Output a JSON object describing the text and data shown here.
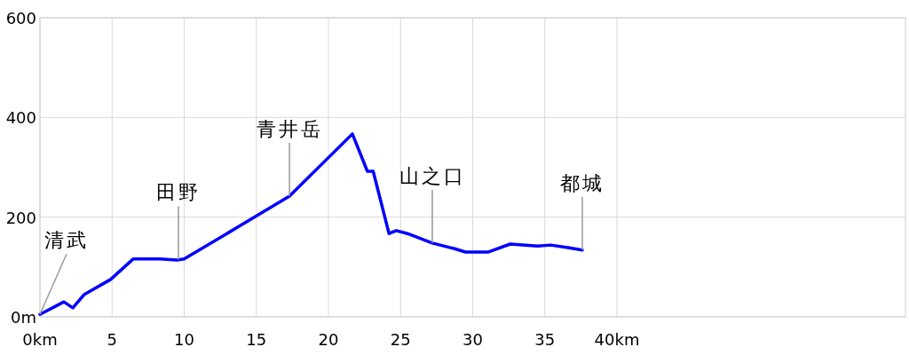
{
  "chart_data": {
    "type": "line",
    "x": [
      0,
      1.66,
      2.28,
      3.08,
      4.9,
      6.46,
      8.3,
      9.5,
      10.0,
      17.3,
      21.66,
      22.7,
      23.1,
      24.2,
      24.7,
      25.6,
      27.2,
      28.7,
      29.5,
      31.1,
      32.6,
      34.5,
      35.4,
      36.6,
      37.6
    ],
    "series": [
      {
        "color": "#0000ff",
        "values": [
          5,
          30,
          18,
          45,
          75,
          116,
          116,
          114,
          116,
          242,
          367,
          292,
          292,
          167,
          173,
          166,
          148,
          137,
          130,
          130,
          146,
          142,
          144,
          139,
          134
        ]
      }
    ],
    "xlim": [
      0,
      60
    ],
    "xticks": [
      {
        "value": 0,
        "label": "0km"
      },
      5,
      10,
      15,
      20,
      25,
      30,
      35,
      {
        "value": 40,
        "label": "40km"
      }
    ],
    "ylim": [
      0,
      600
    ],
    "yticks": [
      {
        "value": 0,
        "label": "0m"
      },
      200,
      400,
      600
    ],
    "grid": true,
    "line_style": "solid",
    "marker": "none",
    "annotations": [
      {
        "text": "清武",
        "x": 0,
        "y": 5
      },
      {
        "text": "田野",
        "x": 9.6,
        "y": 115
      },
      {
        "text": "青井岳",
        "x": 17.3,
        "y": 242
      },
      {
        "text": "山之口",
        "x": 27.2,
        "y": 148
      },
      {
        "text": "都城",
        "x": 37.6,
        "y": 134
      }
    ]
  }
}
